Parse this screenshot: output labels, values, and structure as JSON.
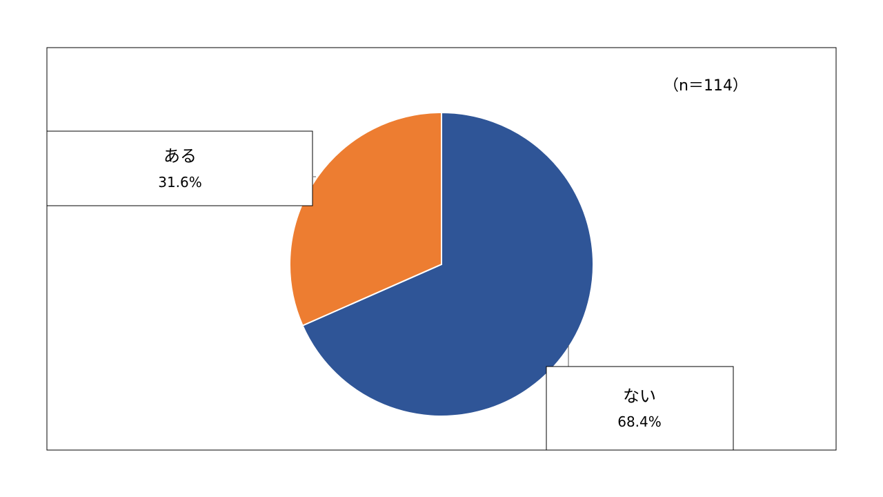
{
  "chart_data": {
    "type": "pie",
    "sample_size_label": "（n＝114）",
    "slices": [
      {
        "label": "ない",
        "value": 68.4,
        "value_label": "68.4%",
        "color": "#2f5597"
      },
      {
        "label": "ある",
        "value": 31.6,
        "value_label": "31.6%",
        "color": "#ed7d31"
      }
    ],
    "start_angle": "12 o'clock",
    "direction": "clockwise"
  }
}
